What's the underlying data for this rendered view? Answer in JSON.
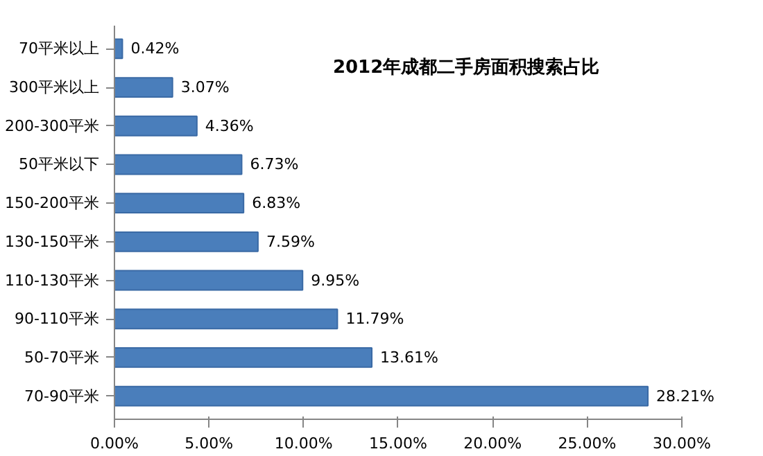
{
  "chart_data": {
    "type": "bar",
    "orientation": "horizontal",
    "title": "2012年成都二手房面积搜索占比",
    "categories": [
      "70平米以上",
      "300平米以上",
      "200-300平米",
      "50平米以下",
      "150-200平米",
      "130-150平米",
      "110-130平米",
      "90-110平米",
      "50-70平米",
      "70-90平米"
    ],
    "values": [
      0.42,
      3.07,
      4.36,
      6.73,
      6.83,
      7.59,
      9.95,
      11.79,
      13.61,
      28.21
    ],
    "value_labels": [
      "0.42%",
      "3.07%",
      "4.36%",
      "6.73%",
      "6.83%",
      "7.59%",
      "9.95%",
      "11.79%",
      "13.61%",
      "28.21%"
    ],
    "color": "#4a7ebb",
    "xlim": [
      0,
      30
    ],
    "xticks": [
      {
        "value": 0,
        "label": "0.00%"
      },
      {
        "value": 5,
        "label": "5.00%"
      },
      {
        "value": 10,
        "label": "10.00%"
      },
      {
        "value": 15,
        "label": "15.00%"
      },
      {
        "value": 20,
        "label": "20.00%"
      },
      {
        "value": 25,
        "label": "25.00%"
      },
      {
        "value": 30,
        "label": "30.00%"
      }
    ],
    "grid": false,
    "legend": false
  }
}
